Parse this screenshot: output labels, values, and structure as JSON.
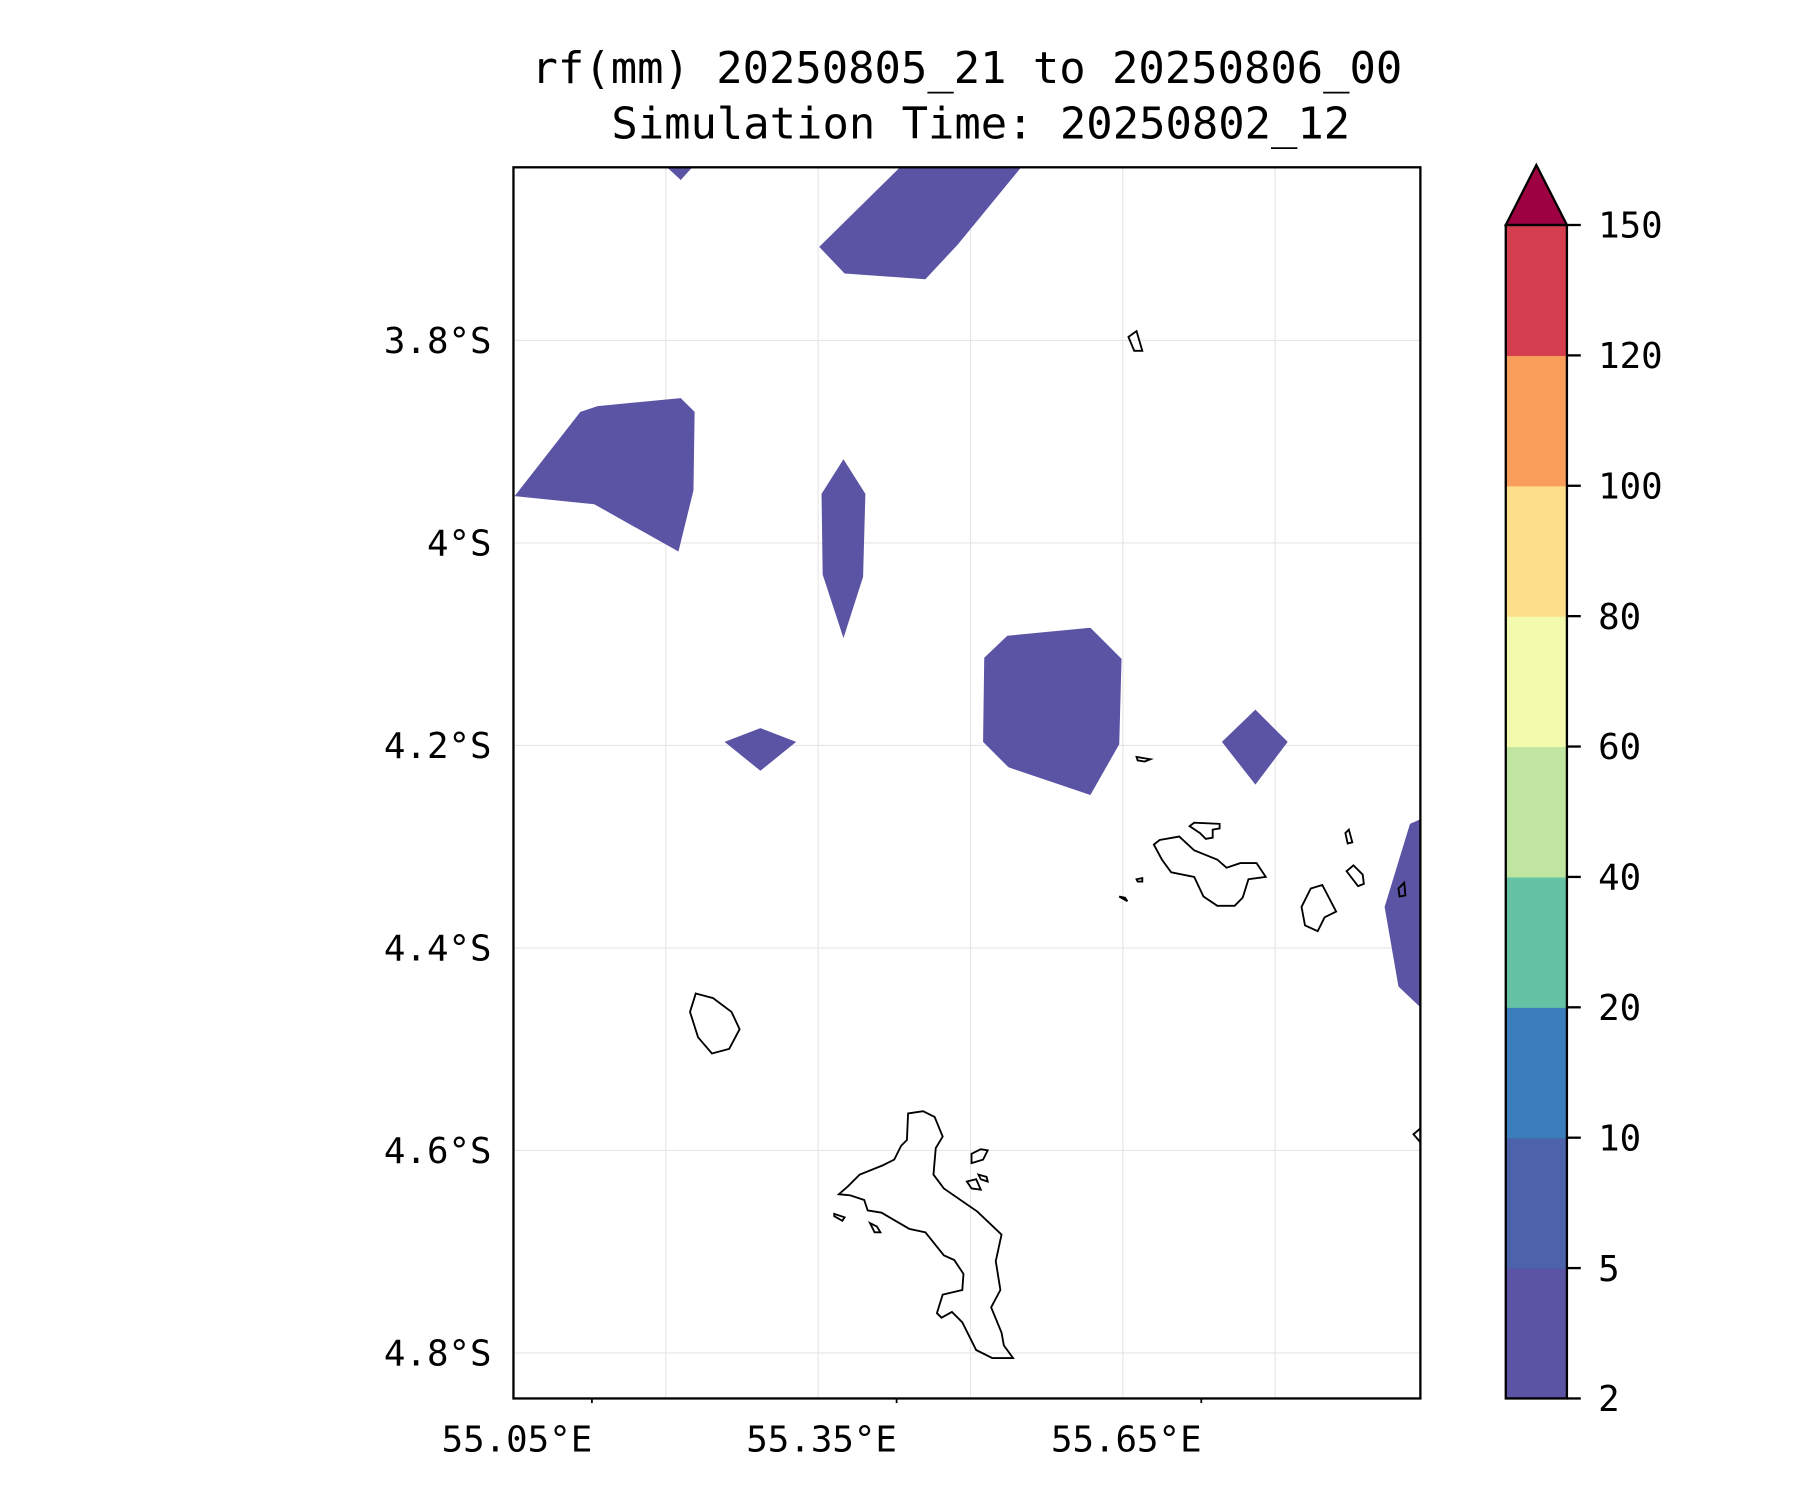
{
  "title": {
    "line1": "rf(mm) 20250805_21 to 20250806_00",
    "line2": "Simulation Time: 20250802_12"
  },
  "chart_data": {
    "type": "heatmap",
    "subtype": "filled-contour map",
    "variable": "rf(mm)",
    "title": "rf(mm) 20250805_21 to 20250806_00 / Simulation Time: 20250802_12",
    "xlabel": "",
    "ylabel": "",
    "xlim": [
      55.05,
      55.943
    ],
    "ylim": [
      -4.845,
      -3.629
    ],
    "x_ticks": [
      {
        "value": 55.05,
        "label": "55.05°E"
      },
      {
        "value": 55.35,
        "label": "55.35°E"
      },
      {
        "value": 55.65,
        "label": "55.65°E"
      }
    ],
    "x_gridlines": [
      55.2,
      55.35,
      55.5,
      55.65,
      55.8
    ],
    "y_ticks": [
      {
        "value": -3.8,
        "label": "3.8°S"
      },
      {
        "value": -4.0,
        "label": "4°S"
      },
      {
        "value": -4.2,
        "label": "4.2°S"
      },
      {
        "value": -4.4,
        "label": "4.4°S"
      },
      {
        "value": -4.6,
        "label": "4.6°S"
      },
      {
        "value": -4.8,
        "label": "4.8°S"
      }
    ],
    "grid": true,
    "colorbar": {
      "placement": "right",
      "extend": "max",
      "levels": [
        "2",
        "5",
        "10",
        "20",
        "40",
        "60",
        "80",
        "100",
        "120",
        "150"
      ],
      "colors": [
        "#5b53a4",
        "#4c62ab",
        "#3a7fbb",
        "#66c2a5",
        "#bfe5a0",
        "#f3faad",
        "#fddf8b",
        "#f99e5a",
        "#d53e4f"
      ],
      "extend_color": "#9e0142"
    },
    "observed_range_mm": "2-5 only (all shaded areas)"
  }
}
